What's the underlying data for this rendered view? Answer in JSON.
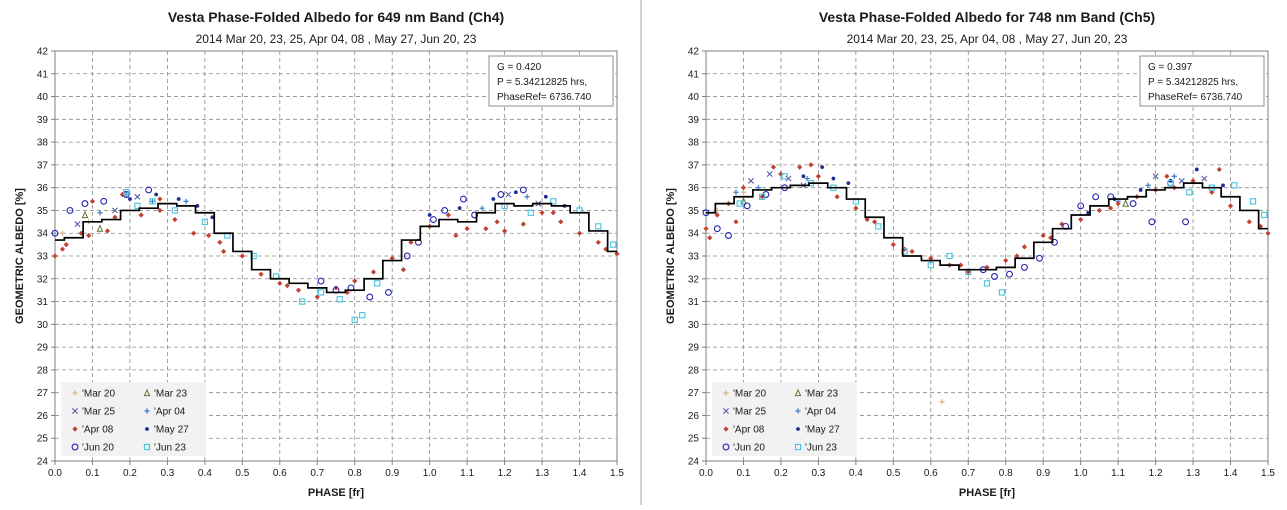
{
  "chart_data": [
    {
      "type": "scatter",
      "title": "Vesta Phase-Folded Albedo for 649 nm Band (Ch4)",
      "subtitle": "2014  Mar 20, 23, 25, Apr 04, 08 , May 27, Jun 20, 23",
      "xlabel": "PHASE [fr]",
      "ylabel": "GEOMETRIC ALBEDO [%]",
      "xlim": [
        0,
        1.5
      ],
      "ylim": [
        24,
        42
      ],
      "xticks": [
        "0.0",
        "0.1",
        "0.2",
        "0.3",
        "0.4",
        "0.5",
        "0.6",
        "0.7",
        "0.8",
        "0.9",
        "1.0",
        "1.1",
        "1.2",
        "1.3",
        "1.4",
        "1.5"
      ],
      "yticks": [
        "24",
        "25",
        "26",
        "27",
        "28",
        "29",
        "30",
        "31",
        "32",
        "33",
        "34",
        "35",
        "36",
        "37",
        "38",
        "39",
        "40",
        "41",
        "42"
      ],
      "grid": true,
      "annotation": [
        "G = 0.420",
        "P = 5.34212825 hrs,",
        "PhaseRef= 6736.740"
      ],
      "legend_position": "bottom-left",
      "fit_curve": {
        "name": "fit",
        "color": "#000000",
        "x": [
          0.0,
          0.05,
          0.1,
          0.15,
          0.2,
          0.25,
          0.3,
          0.35,
          0.4,
          0.45,
          0.5,
          0.55,
          0.6,
          0.65,
          0.7,
          0.75,
          0.8,
          0.85,
          0.9,
          0.95,
          1.0,
          1.05,
          1.1,
          1.15,
          1.2,
          1.25,
          1.3,
          1.35,
          1.4,
          1.45,
          1.5
        ],
        "y": [
          33.7,
          33.8,
          34.5,
          34.6,
          35.0,
          35.1,
          35.3,
          35.2,
          34.9,
          34.0,
          33.2,
          32.4,
          32.0,
          31.8,
          31.6,
          31.4,
          31.5,
          32.0,
          32.8,
          33.7,
          34.3,
          34.6,
          34.5,
          34.9,
          35.3,
          35.2,
          35.3,
          35.2,
          34.9,
          34.1,
          33.2
        ]
      },
      "series": [
        {
          "name": "'Mar 20",
          "marker": "plus",
          "color": "#d8b48a",
          "x": [
            0.02,
            0.09
          ],
          "y": [
            34.0,
            34.5
          ]
        },
        {
          "name": "'Mar 23",
          "marker": "triangle",
          "color": "#5a7a2e",
          "x": [
            0.08,
            0.12
          ],
          "y": [
            34.8,
            34.2
          ]
        },
        {
          "name": "'Mar 25",
          "marker": "cross",
          "color": "#5a5aa8",
          "x": [
            0.06,
            0.16,
            0.22,
            1.21,
            1.29
          ],
          "y": [
            34.4,
            35.0,
            35.6,
            35.7,
            35.3
          ]
        },
        {
          "name": "'Apr 04",
          "marker": "plus",
          "color": "#3a7cc2",
          "x": [
            0.12,
            0.19,
            0.26,
            0.35,
            1.14,
            1.26
          ],
          "y": [
            34.9,
            35.7,
            35.4,
            35.4,
            35.1,
            35.6
          ]
        },
        {
          "name": "'Apr 08",
          "marker": "diamond",
          "color": "#c0412f",
          "x": [
            0.0,
            0.03,
            0.07,
            0.1,
            0.14,
            0.18,
            0.23,
            0.28,
            0.32,
            0.37,
            0.41,
            0.45,
            0.5,
            0.55,
            0.6,
            0.65,
            0.7,
            0.75,
            0.8,
            0.85,
            0.9,
            0.95,
            1.0,
            1.05,
            1.1,
            1.15,
            1.2,
            1.25,
            1.3,
            1.35,
            1.4,
            1.45,
            1.5,
            0.02,
            0.09,
            0.16,
            0.28,
            0.44,
            0.62,
            0.78,
            0.93,
            1.07,
            1.18,
            1.33,
            1.47
          ],
          "y": [
            33.0,
            33.5,
            34.0,
            35.4,
            34.1,
            35.7,
            34.8,
            35.0,
            34.6,
            34.0,
            33.9,
            33.2,
            33.0,
            32.2,
            31.8,
            31.5,
            31.2,
            31.6,
            31.9,
            32.3,
            32.9,
            33.6,
            34.3,
            34.8,
            34.2,
            34.2,
            34.1,
            34.4,
            34.9,
            34.5,
            34.0,
            33.6,
            33.1,
            33.3,
            33.9,
            34.7,
            35.5,
            33.6,
            31.7,
            31.4,
            32.4,
            33.9,
            34.5,
            34.9,
            33.3
          ]
        },
        {
          "name": "'May 27",
          "marker": "dot",
          "color": "#1f2d8f",
          "x": [
            0.2,
            0.27,
            0.33,
            0.38,
            0.42,
            1.0,
            1.08,
            1.17,
            1.23,
            1.31,
            1.36
          ],
          "y": [
            35.5,
            35.7,
            35.5,
            35.2,
            34.7,
            34.8,
            35.1,
            35.5,
            35.8,
            35.6,
            35.2
          ]
        },
        {
          "name": "'Jun 20",
          "marker": "circle",
          "color": "#2424b4",
          "x": [
            0.0,
            0.04,
            0.08,
            0.13,
            0.19,
            0.25,
            0.71,
            0.75,
            0.79,
            0.84,
            0.89,
            0.94,
            0.97,
            1.01,
            1.04,
            1.09,
            1.12,
            1.19,
            1.25
          ],
          "y": [
            34.0,
            35.0,
            35.3,
            35.4,
            35.7,
            35.9,
            31.9,
            31.5,
            31.6,
            31.2,
            31.4,
            33.0,
            33.6,
            34.6,
            35.0,
            35.5,
            34.8,
            35.7,
            35.9
          ]
        },
        {
          "name": "'Jun 23",
          "marker": "square",
          "color": "#47c3dd",
          "x": [
            0.19,
            0.22,
            0.26,
            0.32,
            0.4,
            0.46,
            0.53,
            0.59,
            0.66,
            0.71,
            0.76,
            0.8,
            0.82,
            0.86,
            1.2,
            1.27,
            1.33,
            1.4,
            1.45,
            1.49
          ],
          "y": [
            35.8,
            35.2,
            35.4,
            35.0,
            34.5,
            33.9,
            33.0,
            32.1,
            31.0,
            31.4,
            31.1,
            30.2,
            30.4,
            31.8,
            35.2,
            34.9,
            35.4,
            35.0,
            34.3,
            33.5
          ]
        }
      ]
    },
    {
      "type": "scatter",
      "title": "Vesta Phase-Folded Albedo for 748 nm Band (Ch5)",
      "subtitle": "2014  Mar 20, 23, 25, Apr 04, 08 , May 27, Jun 20, 23",
      "xlabel": "PHASE [fr]",
      "ylabel": "GEOMETRIC ALBEDO [%]",
      "xlim": [
        0,
        1.5
      ],
      "ylim": [
        24,
        42
      ],
      "xticks": [
        "0.0",
        "0.1",
        "0.2",
        "0.3",
        "0.4",
        "0.5",
        "0.6",
        "0.7",
        "0.8",
        "0.9",
        "1.0",
        "1.1",
        "1.2",
        "1.3",
        "1.4",
        "1.5"
      ],
      "yticks": [
        "24",
        "25",
        "26",
        "27",
        "28",
        "29",
        "30",
        "31",
        "32",
        "33",
        "34",
        "35",
        "36",
        "37",
        "38",
        "39",
        "40",
        "41",
        "42"
      ],
      "grid": true,
      "annotation": [
        "G = 0.397",
        "P = 5.34212825 hrs,",
        "PhaseRef= 6736.740"
      ],
      "legend_position": "bottom-left",
      "fit_curve": {
        "name": "fit",
        "color": "#000000",
        "x": [
          0.0,
          0.05,
          0.1,
          0.15,
          0.2,
          0.25,
          0.3,
          0.35,
          0.4,
          0.45,
          0.5,
          0.55,
          0.6,
          0.65,
          0.7,
          0.75,
          0.8,
          0.85,
          0.9,
          0.95,
          1.0,
          1.05,
          1.1,
          1.15,
          1.2,
          1.25,
          1.3,
          1.35,
          1.4,
          1.45,
          1.5
        ],
        "y": [
          34.9,
          35.3,
          35.6,
          35.9,
          36.0,
          36.1,
          36.2,
          36.0,
          35.5,
          34.7,
          33.8,
          33.0,
          32.8,
          32.6,
          32.4,
          32.4,
          32.5,
          32.9,
          33.6,
          34.2,
          34.8,
          35.2,
          35.5,
          35.6,
          35.9,
          36.0,
          36.2,
          36.0,
          35.6,
          35.0,
          34.2
        ]
      },
      "series": [
        {
          "name": "'Mar 20",
          "marker": "plus",
          "color": "#d8b48a",
          "x": [
            0.03,
            0.1,
            0.63
          ],
          "y": [
            35.0,
            35.8,
            26.6
          ]
        },
        {
          "name": "'Mar 23",
          "marker": "triangle",
          "color": "#5a7a2e",
          "x": [
            0.1,
            1.12
          ],
          "y": [
            35.4,
            35.3
          ]
        },
        {
          "name": "'Mar 25",
          "marker": "cross",
          "color": "#5a5aa8",
          "x": [
            0.12,
            0.17,
            0.22,
            0.26,
            1.2,
            1.27,
            1.33
          ],
          "y": [
            36.3,
            36.6,
            36.4,
            36.1,
            36.5,
            36.3,
            36.4
          ]
        },
        {
          "name": "'Apr 04",
          "marker": "plus",
          "color": "#3a7cc2",
          "x": [
            0.08,
            0.14,
            0.2,
            0.27,
            1.1,
            1.18,
            1.25
          ],
          "y": [
            35.8,
            36.0,
            36.6,
            36.4,
            35.4,
            36.1,
            36.5
          ]
        },
        {
          "name": "'Apr 08",
          "marker": "diamond",
          "color": "#c0412f",
          "x": [
            0.0,
            0.03,
            0.06,
            0.1,
            0.15,
            0.2,
            0.25,
            0.3,
            0.35,
            0.4,
            0.45,
            0.5,
            0.55,
            0.6,
            0.65,
            0.7,
            0.75,
            0.8,
            0.85,
            0.9,
            0.95,
            1.0,
            1.05,
            1.1,
            1.15,
            1.2,
            1.25,
            1.3,
            1.35,
            1.4,
            1.45,
            1.5,
            0.01,
            0.08,
            0.18,
            0.28,
            0.43,
            0.53,
            0.68,
            0.83,
            0.92,
            1.08,
            1.23,
            1.37,
            1.48
          ],
          "y": [
            34.2,
            34.8,
            35.3,
            36.0,
            35.6,
            36.6,
            36.9,
            36.5,
            35.6,
            35.1,
            34.5,
            33.5,
            33.2,
            32.9,
            32.6,
            32.3,
            32.5,
            32.8,
            33.4,
            33.9,
            34.4,
            34.6,
            35.0,
            35.3,
            35.6,
            35.9,
            36.0,
            36.3,
            35.8,
            35.2,
            34.5,
            34.0,
            33.8,
            34.5,
            36.9,
            37.0,
            34.6,
            33.3,
            32.6,
            33.0,
            33.8,
            35.1,
            36.5,
            36.8,
            34.3
          ]
        },
        {
          "name": "'May 27",
          "marker": "dot",
          "color": "#1f2d8f",
          "x": [
            0.26,
            0.31,
            0.34,
            0.38,
            1.02,
            1.09,
            1.16,
            1.24,
            1.31,
            1.38
          ],
          "y": [
            36.5,
            36.9,
            36.4,
            36.2,
            34.9,
            35.5,
            35.9,
            36.3,
            36.8,
            36.1
          ]
        },
        {
          "name": "'Jun 20",
          "marker": "circle",
          "color": "#2424b4",
          "x": [
            0.0,
            0.03,
            0.06,
            0.11,
            0.16,
            0.21,
            0.74,
            0.77,
            0.81,
            0.85,
            0.89,
            0.93,
            0.96,
            1.0,
            1.04,
            1.08,
            1.14,
            1.19,
            1.24,
            1.28
          ],
          "y": [
            34.9,
            34.2,
            33.9,
            35.2,
            35.7,
            36.0,
            32.4,
            32.1,
            32.2,
            32.5,
            32.9,
            33.6,
            34.3,
            35.2,
            35.6,
            35.6,
            35.3,
            34.5,
            36.2,
            34.5
          ]
        },
        {
          "name": "'Jun 23",
          "marker": "square",
          "color": "#47c3dd",
          "x": [
            0.09,
            0.15,
            0.21,
            0.28,
            0.34,
            0.4,
            0.46,
            0.53,
            0.6,
            0.65,
            0.7,
            0.75,
            0.79,
            1.24,
            1.29,
            1.35,
            1.41,
            1.46,
            1.49
          ],
          "y": [
            35.3,
            35.6,
            36.5,
            36.2,
            36.0,
            35.4,
            34.3,
            33.2,
            32.6,
            33.0,
            32.3,
            31.8,
            31.4,
            36.2,
            35.8,
            36.0,
            36.1,
            35.4,
            34.8
          ]
        }
      ]
    }
  ]
}
